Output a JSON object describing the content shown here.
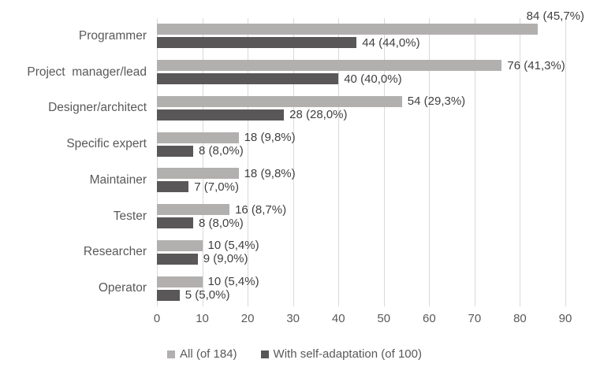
{
  "chart_data": {
    "type": "bar",
    "orientation": "horizontal",
    "title": "",
    "xlabel": "",
    "ylabel": "",
    "xlim": [
      0,
      90
    ],
    "x_ticks": [
      0,
      10,
      20,
      30,
      40,
      50,
      60,
      70,
      80,
      90
    ],
    "grid": "vertical",
    "legend_position": "bottom",
    "categories": [
      "Programmer",
      "Project  manager/lead",
      "Designer/architect",
      "Specific expert",
      "Maintainer",
      "Tester",
      "Researcher",
      "Operator"
    ],
    "series": [
      {
        "name": "All (of 184)",
        "color": "#b2afaf",
        "values": [
          84,
          76,
          54,
          18,
          18,
          16,
          10,
          10
        ],
        "labels": [
          "84 (45,7%)",
          "76 (41,3%)",
          "54 (29,3%)",
          "18 (9,8%)",
          "18 (9,8%)",
          "16 (8,7%)",
          "10 (5,4%)",
          "10 (5,4%)"
        ]
      },
      {
        "name": "With self-adaptation (of 100)",
        "color": "#595757",
        "values": [
          44,
          40,
          28,
          8,
          7,
          8,
          9,
          5
        ],
        "labels": [
          "44 (44,0%)",
          "40 (40,0%)",
          "28 (28,0%)",
          "8 (8,0%)",
          "7 (7,0%)",
          "8 (8,0%)",
          "9 (9,0%)",
          "5 (5,0%)"
        ]
      }
    ],
    "colors": {
      "gridline": "#d9d9d9",
      "axis_text": "#595959",
      "data_label_text": "#404040",
      "background": "#ffffff"
    }
  }
}
